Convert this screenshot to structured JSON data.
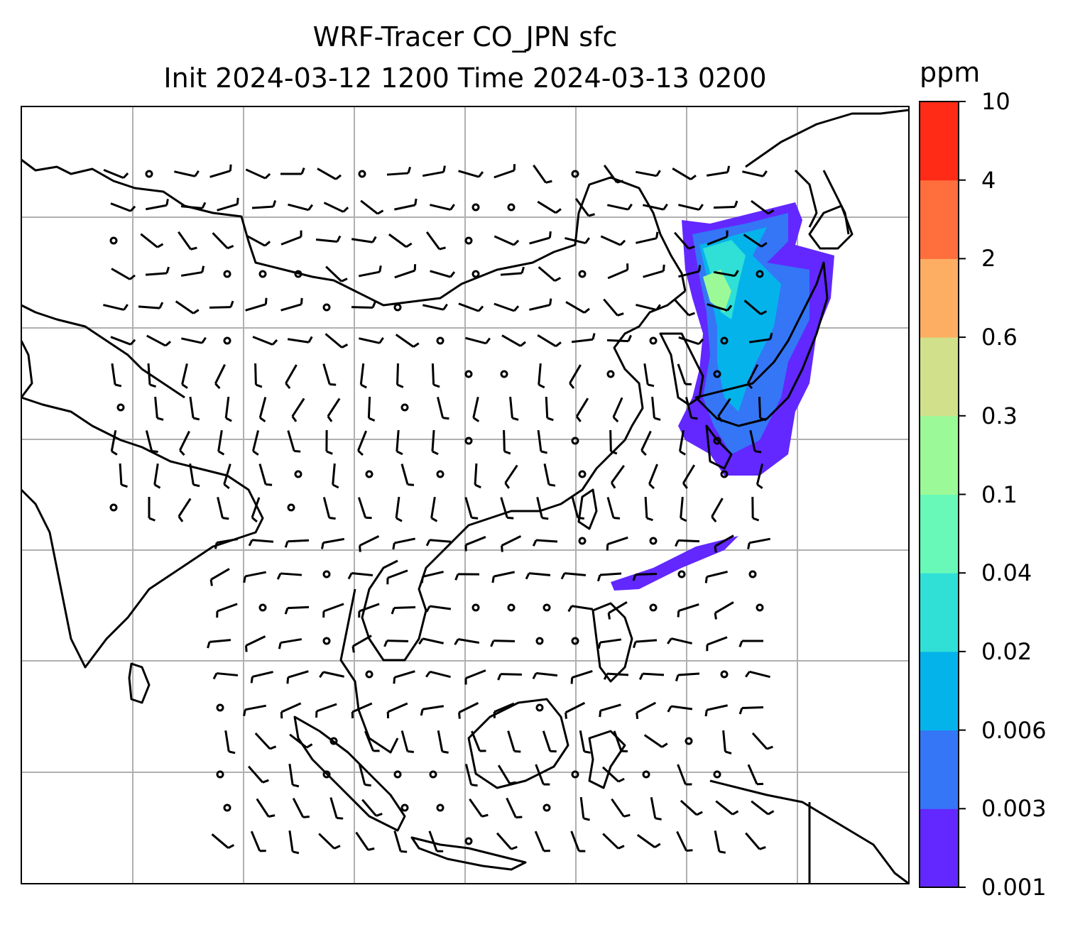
{
  "title": {
    "line1": "WRF-Tracer CO_JPN sfc",
    "line2": "Init 2024-03-12 1200 Time 2024-03-13 0200"
  },
  "colorbar": {
    "unit": "ppm",
    "ticks": [
      "0.001",
      "0.003",
      "0.006",
      "0.02",
      "0.04",
      "0.1",
      "0.3",
      "0.6",
      "2",
      "4",
      "10"
    ],
    "colors": [
      "#6228ff",
      "#3476f6",
      "#05b3eb",
      "#30dfd6",
      "#68f9b9",
      "#9bfa97",
      "#d1e08b",
      "#feae62",
      "#ff6f3e",
      "#ff2b16"
    ]
  },
  "map": {
    "grid": true,
    "coastline_color": "#000000",
    "tracer_plume": "CO concentration over Japan and adjacent seas",
    "wind_barbs": true
  }
}
